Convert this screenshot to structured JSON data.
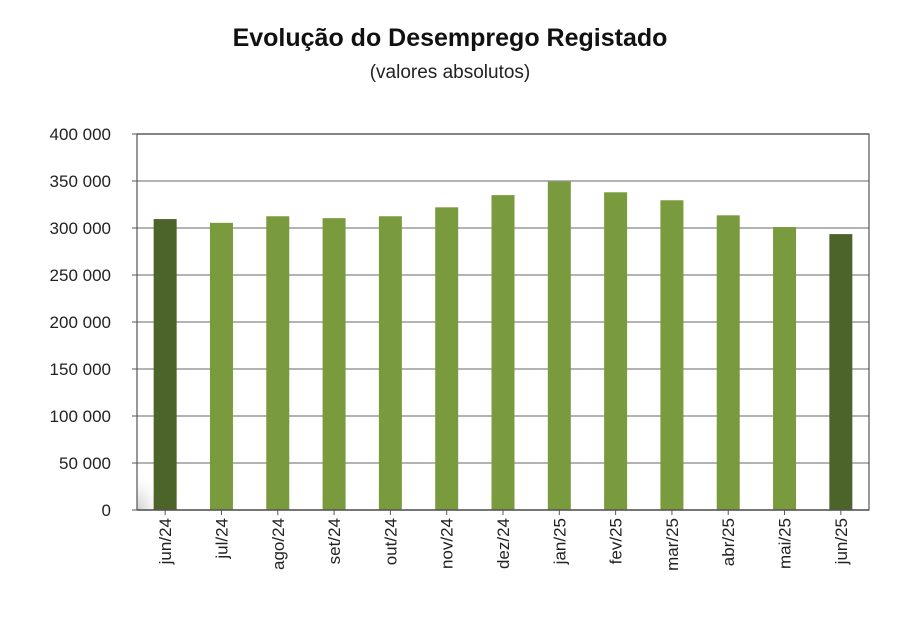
{
  "chart_data": {
    "type": "bar",
    "title": "Evolução do Desemprego Registado",
    "subtitle": "(valores absolutos)",
    "categories": [
      "jun/24",
      "jul/24",
      "ago/24",
      "set/24",
      "out/24",
      "nov/24",
      "dez/24",
      "jan/25",
      "fev/25",
      "mar/25",
      "abr/25",
      "mai/25",
      "jun/25"
    ],
    "values": [
      309500,
      305500,
      312500,
      310500,
      312500,
      322000,
      335000,
      349500,
      338000,
      329500,
      313500,
      301000,
      293500
    ],
    "highlighted": [
      "jun/24",
      "jun/25"
    ],
    "ylim": [
      0,
      400000
    ],
    "yticks": [
      0,
      50000,
      100000,
      150000,
      200000,
      250000,
      300000,
      350000,
      400000
    ],
    "ytick_labels": [
      "0",
      "50 000",
      "100 000",
      "150 000",
      "200 000",
      "250 000",
      "300 000",
      "350 000",
      "400 000"
    ],
    "xlabel": "",
    "ylabel": "",
    "grid": true,
    "legend": "none",
    "colors": {
      "bar": "#7a9a3e",
      "bar_highlight": "#4c632a",
      "grid": "#9a9a9a",
      "axis": "#555555"
    }
  }
}
